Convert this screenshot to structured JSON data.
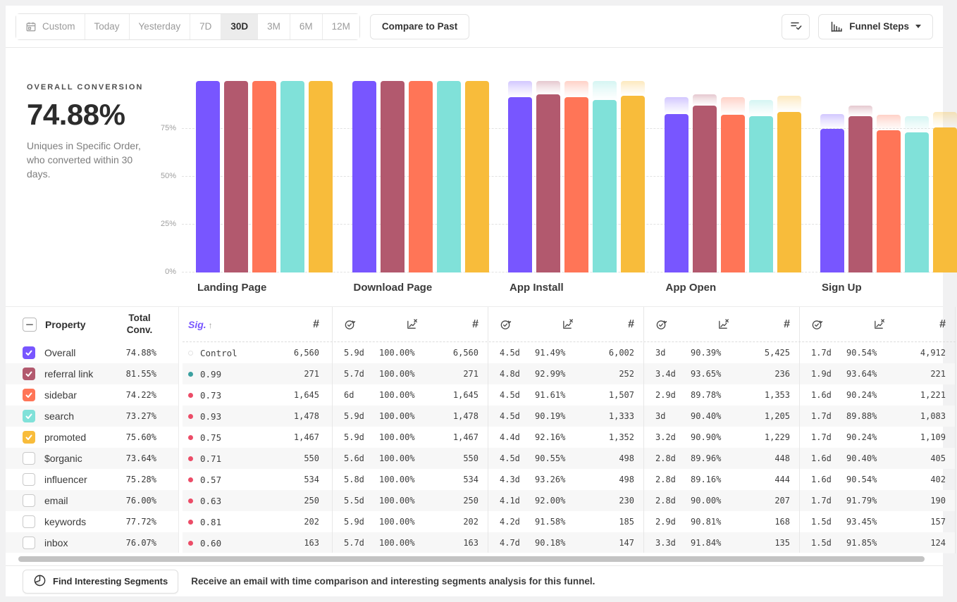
{
  "toolbar": {
    "date_ranges": [
      "Custom",
      "Today",
      "Yesterday",
      "7D",
      "30D",
      "3M",
      "6M",
      "12M"
    ],
    "selected_range": "30D",
    "compare_to_past_label": "Compare to Past",
    "funnel_steps_label": "Funnel Steps",
    "icons": {
      "custom_range": "calendar-icon",
      "metric_list": "list-check-icon",
      "chart_type": "bar-chart-icon",
      "dropdown": "caret-down-icon"
    }
  },
  "summary": {
    "label": "OVERALL CONVERSION",
    "value": "74.88%",
    "description": "Uniques in Specific Order, who converted within 30 days."
  },
  "chart_data": {
    "type": "bar",
    "title": "",
    "categories": [
      "Landing Page",
      "Download Page",
      "App Install",
      "App Open",
      "Sign Up"
    ],
    "y_ticks": [
      {
        "label": "75%",
        "value": 75
      },
      {
        "label": "50%",
        "value": 50
      },
      {
        "label": "25%",
        "value": 25
      },
      {
        "label": "0%",
        "value": 0
      }
    ],
    "ylim": [
      0,
      100
    ],
    "grid": "horizontal-dashed",
    "legend": "none (series colors map to property checkboxes in table)",
    "ghost_bars": "faded cap above each bar shows previous step level",
    "series": [
      {
        "name": "Overall",
        "color": "#7856ff",
        "values": [
          100,
          100,
          91.49,
          82.7,
          74.88
        ]
      },
      {
        "name": "referral link",
        "color": "#b2596e",
        "values": [
          100,
          100,
          92.99,
          87.08,
          81.55
        ]
      },
      {
        "name": "sidebar",
        "color": "#ff7557",
        "values": [
          100,
          100,
          91.61,
          82.25,
          74.22
        ]
      },
      {
        "name": "search",
        "color": "#80e1d9",
        "values": [
          100,
          100,
          90.19,
          81.53,
          73.27
        ]
      },
      {
        "name": "promoted",
        "color": "#f8bc3b",
        "values": [
          100,
          100,
          92.16,
          83.78,
          75.6
        ]
      }
    ]
  },
  "table": {
    "headers": {
      "property": "Property",
      "total_conv": "Total Conv.",
      "sig": "Sig.",
      "sort_arrow": "↑",
      "count_symbol": "#",
      "icons": {
        "time_to_convert": "stopwatch-check-icon",
        "conversion_rate": "chart-x-icon"
      }
    },
    "sig_colors": {
      "control": "#e3e3e3",
      "positive": "#3ba0a0",
      "negative": "#ec4c67"
    },
    "properties": [
      {
        "label": "Overall",
        "total_conv": "74.88%",
        "checked": true,
        "color": "#7856ff"
      },
      {
        "label": "referral link",
        "total_conv": "81.55%",
        "checked": true,
        "color": "#b2596e"
      },
      {
        "label": "sidebar",
        "total_conv": "74.22%",
        "checked": true,
        "color": "#ff7557"
      },
      {
        "label": "search",
        "total_conv": "73.27%",
        "checked": true,
        "color": "#80e1d9"
      },
      {
        "label": "promoted",
        "total_conv": "75.60%",
        "checked": true,
        "color": "#f8bc3b"
      },
      {
        "label": "$organic",
        "total_conv": "73.64%",
        "checked": false,
        "color": ""
      },
      {
        "label": "influencer",
        "total_conv": "75.28%",
        "checked": false,
        "color": ""
      },
      {
        "label": "email",
        "total_conv": "76.00%",
        "checked": false,
        "color": ""
      },
      {
        "label": "keywords",
        "total_conv": "77.72%",
        "checked": false,
        "color": ""
      },
      {
        "label": "inbox",
        "total_conv": "76.07%",
        "checked": false,
        "color": ""
      }
    ],
    "rows": [
      {
        "sig": {
          "type": "control",
          "label": "Control"
        },
        "steps": [
          {
            "count": "6,560"
          },
          {
            "time": "5.9d",
            "rate": "100.00%",
            "count": "6,560"
          },
          {
            "time": "4.5d",
            "rate": "91.49%",
            "count": "6,002"
          },
          {
            "time": "3d",
            "rate": "90.39%",
            "count": "5,425"
          },
          {
            "time": "1.7d",
            "rate": "90.54%",
            "count": "4,912"
          }
        ]
      },
      {
        "sig": {
          "type": "positive",
          "label": "0.99"
        },
        "steps": [
          {
            "count": "271"
          },
          {
            "time": "5.7d",
            "rate": "100.00%",
            "count": "271"
          },
          {
            "time": "4.8d",
            "rate": "92.99%",
            "count": "252"
          },
          {
            "time": "3.4d",
            "rate": "93.65%",
            "count": "236"
          },
          {
            "time": "1.9d",
            "rate": "93.64%",
            "count": "221"
          }
        ]
      },
      {
        "sig": {
          "type": "negative",
          "label": "0.73"
        },
        "steps": [
          {
            "count": "1,645"
          },
          {
            "time": "6d",
            "rate": "100.00%",
            "count": "1,645"
          },
          {
            "time": "4.5d",
            "rate": "91.61%",
            "count": "1,507"
          },
          {
            "time": "2.9d",
            "rate": "89.78%",
            "count": "1,353"
          },
          {
            "time": "1.6d",
            "rate": "90.24%",
            "count": "1,221"
          }
        ]
      },
      {
        "sig": {
          "type": "negative",
          "label": "0.93"
        },
        "steps": [
          {
            "count": "1,478"
          },
          {
            "time": "5.9d",
            "rate": "100.00%",
            "count": "1,478"
          },
          {
            "time": "4.5d",
            "rate": "90.19%",
            "count": "1,333"
          },
          {
            "time": "3d",
            "rate": "90.40%",
            "count": "1,205"
          },
          {
            "time": "1.7d",
            "rate": "89.88%",
            "count": "1,083"
          }
        ]
      },
      {
        "sig": {
          "type": "negative",
          "label": "0.75"
        },
        "steps": [
          {
            "count": "1,467"
          },
          {
            "time": "5.9d",
            "rate": "100.00%",
            "count": "1,467"
          },
          {
            "time": "4.4d",
            "rate": "92.16%",
            "count": "1,352"
          },
          {
            "time": "3.2d",
            "rate": "90.90%",
            "count": "1,229"
          },
          {
            "time": "1.7d",
            "rate": "90.24%",
            "count": "1,109"
          }
        ]
      },
      {
        "sig": {
          "type": "negative",
          "label": "0.71"
        },
        "steps": [
          {
            "count": "550"
          },
          {
            "time": "5.6d",
            "rate": "100.00%",
            "count": "550"
          },
          {
            "time": "4.5d",
            "rate": "90.55%",
            "count": "498"
          },
          {
            "time": "2.8d",
            "rate": "89.96%",
            "count": "448"
          },
          {
            "time": "1.6d",
            "rate": "90.40%",
            "count": "405"
          }
        ]
      },
      {
        "sig": {
          "type": "negative",
          "label": "0.57"
        },
        "steps": [
          {
            "count": "534"
          },
          {
            "time": "5.8d",
            "rate": "100.00%",
            "count": "534"
          },
          {
            "time": "4.3d",
            "rate": "93.26%",
            "count": "498"
          },
          {
            "time": "2.8d",
            "rate": "89.16%",
            "count": "444"
          },
          {
            "time": "1.6d",
            "rate": "90.54%",
            "count": "402"
          }
        ]
      },
      {
        "sig": {
          "type": "negative",
          "label": "0.63"
        },
        "steps": [
          {
            "count": "250"
          },
          {
            "time": "5.5d",
            "rate": "100.00%",
            "count": "250"
          },
          {
            "time": "4.1d",
            "rate": "92.00%",
            "count": "230"
          },
          {
            "time": "2.8d",
            "rate": "90.00%",
            "count": "207"
          },
          {
            "time": "1.7d",
            "rate": "91.79%",
            "count": "190"
          }
        ]
      },
      {
        "sig": {
          "type": "negative",
          "label": "0.81"
        },
        "steps": [
          {
            "count": "202"
          },
          {
            "time": "5.9d",
            "rate": "100.00%",
            "count": "202"
          },
          {
            "time": "4.2d",
            "rate": "91.58%",
            "count": "185"
          },
          {
            "time": "2.9d",
            "rate": "90.81%",
            "count": "168"
          },
          {
            "time": "1.5d",
            "rate": "93.45%",
            "count": "157"
          }
        ]
      },
      {
        "sig": {
          "type": "negative",
          "label": "0.60"
        },
        "steps": [
          {
            "count": "163"
          },
          {
            "time": "5.7d",
            "rate": "100.00%",
            "count": "163"
          },
          {
            "time": "4.7d",
            "rate": "90.18%",
            "count": "147"
          },
          {
            "time": "3.3d",
            "rate": "91.84%",
            "count": "135"
          },
          {
            "time": "1.5d",
            "rate": "91.85%",
            "count": "124"
          }
        ]
      }
    ]
  },
  "footer": {
    "button_label": "Find Interesting Segments",
    "button_icon": "segment-circle-icon",
    "message": "Receive an email with time comparison and interesting segments analysis for this funnel."
  }
}
